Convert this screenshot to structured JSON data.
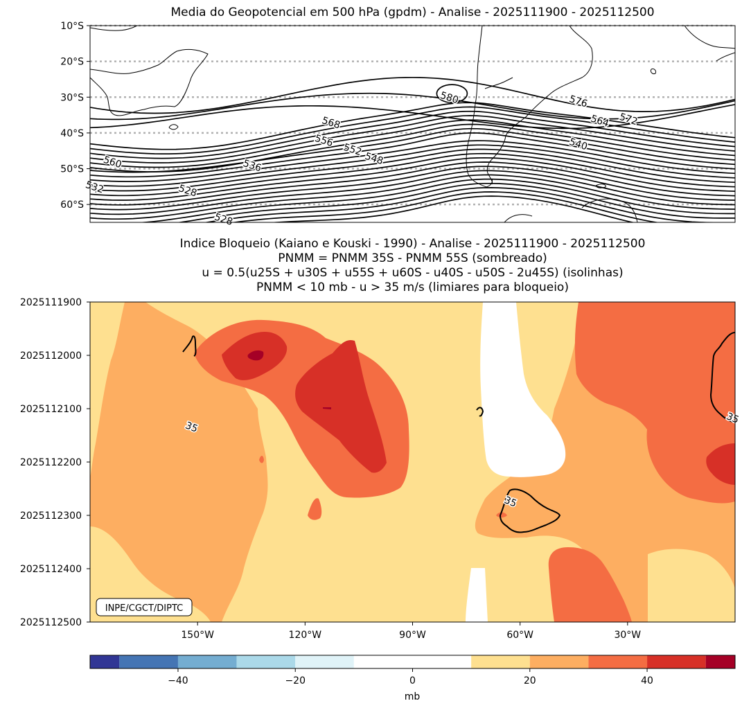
{
  "chart_data": [
    {
      "type": "contour_map",
      "title": "Media do Geopotencial em 500 hPa (gpdm) - Analise - 2025111900 - 2025112500",
      "y_tick_labels": [
        "10°S",
        "20°S",
        "30°S",
        "40°S",
        "50°S",
        "60°S"
      ],
      "lat_values": [
        -10,
        -20,
        -30,
        -40,
        -50,
        -60
      ],
      "ylim": [
        -65,
        -10
      ],
      "xlim": [
        -180,
        0
      ],
      "grid": "dotted horizontal lines at each latitude tick",
      "contour_levels_labeled": [
        "580",
        "576",
        "572",
        "568",
        "564",
        "560",
        "556",
        "552",
        "548",
        "540",
        "536",
        "532",
        "528",
        "528"
      ],
      "contour_labels": [
        {
          "text": "580",
          "lon": -80,
          "lat": -31
        },
        {
          "text": "576",
          "lon": -44,
          "lat": -32
        },
        {
          "text": "572",
          "lon": -30,
          "lat": -37
        },
        {
          "text": "568",
          "lon": -113,
          "lat": -38
        },
        {
          "text": "564",
          "lon": -38,
          "lat": -37.5
        },
        {
          "text": "560",
          "lon": -174,
          "lat": -49
        },
        {
          "text": "556",
          "lon": -115,
          "lat": -43
        },
        {
          "text": "552",
          "lon": -107,
          "lat": -45.5
        },
        {
          "text": "548",
          "lon": -101,
          "lat": -48
        },
        {
          "text": "540",
          "lon": -44,
          "lat": -44
        },
        {
          "text": "536",
          "lon": -135,
          "lat": -50
        },
        {
          "text": "532",
          "lon": -179,
          "lat": -56
        },
        {
          "text": "528",
          "lon": -153,
          "lat": -57
        },
        {
          "text": "528",
          "lon": -143,
          "lat": -65
        }
      ]
    },
    {
      "type": "heatmap_contour",
      "title_lines": [
        "Indice Bloqueio (Kaiano e Kouski - 1990) - Analise - 2025111900 - 2025112500",
        "PNMM = PNMM 35S - PNMM 55S (sombreado)",
        "u = 0.5(u25S + u30S + u55S + u60S - u40S - u50S - 2u45S) (isolinhas)",
        "PNMM < 10 mb - u > 35 m/s (limiares para bloqueio)"
      ],
      "y_tick_labels": [
        "2025111900",
        "2025112000",
        "2025112100",
        "2025112200",
        "2025112300",
        "2025112400",
        "2025112500"
      ],
      "x_tick_labels": [
        "150°W",
        "120°W",
        "90°W",
        "60°W",
        "30°W"
      ],
      "x_values": [
        -150,
        -120,
        -90,
        -60,
        -30
      ],
      "xlim": [
        -180,
        0
      ],
      "contour_level": "35",
      "contour_labels": [
        {
          "text": "35",
          "lon": -152,
          "time": 2.4
        },
        {
          "text": "35",
          "lon": -63,
          "time": 3.8
        },
        {
          "text": "35",
          "lon": -1,
          "time": 2.23
        }
      ],
      "colorbar": {
        "label": "mb",
        "tick_labels": [
          "−40",
          "−20",
          "0",
          "20",
          "40"
        ],
        "tick_values": [
          -40,
          -20,
          0,
          20,
          40
        ],
        "range": [
          -55,
          55
        ],
        "bins": [
          {
            "min": -55,
            "max": -50,
            "color": "#313695"
          },
          {
            "min": -50,
            "max": -40,
            "color": "#4575b4"
          },
          {
            "min": -40,
            "max": -30,
            "color": "#74add1"
          },
          {
            "min": -30,
            "max": -20,
            "color": "#abd9e9"
          },
          {
            "min": -20,
            "max": -10,
            "color": "#e0f3f8"
          },
          {
            "min": -10,
            "max": 10,
            "color": "#ffffff"
          },
          {
            "min": 10,
            "max": 20,
            "color": "#fee090"
          },
          {
            "min": 20,
            "max": 30,
            "color": "#fdae61"
          },
          {
            "min": 30,
            "max": 40,
            "color": "#f46d43"
          },
          {
            "min": 40,
            "max": 50,
            "color": "#d73027"
          },
          {
            "min": 50,
            "max": 55,
            "color": "#a50026"
          }
        ]
      }
    }
  ],
  "credit": "INPE/CGCT/DIPTC"
}
